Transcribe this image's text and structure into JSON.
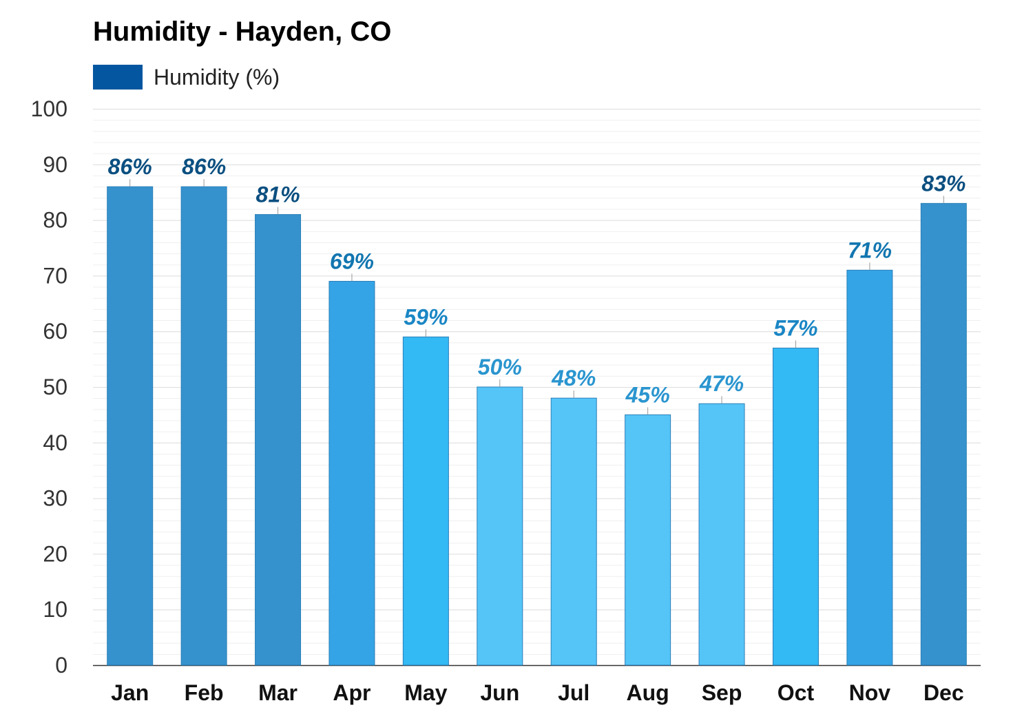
{
  "chart_data": {
    "type": "bar",
    "title": "Humidity - Hayden, CO",
    "legend": {
      "label": "Humidity (%)",
      "color": "#0456a0",
      "placement": "top-left"
    },
    "xlabel": "",
    "ylabel": "",
    "ylim": [
      0,
      100
    ],
    "yticks": [
      "0",
      "10",
      "20",
      "30",
      "40",
      "50",
      "60",
      "70",
      "80",
      "90",
      "100"
    ],
    "grid": true,
    "categories": [
      "Jan",
      "Feb",
      "Mar",
      "Apr",
      "May",
      "Jun",
      "Jul",
      "Aug",
      "Sep",
      "Oct",
      "Nov",
      "Dec"
    ],
    "series": [
      {
        "name": "Humidity (%)",
        "values": [
          86,
          86,
          81,
          69,
          59,
          50,
          48,
          45,
          47,
          57,
          71,
          83
        ],
        "labels": [
          "86%",
          "86%",
          "81%",
          "69%",
          "59%",
          "50%",
          "48%",
          "45%",
          "47%",
          "57%",
          "71%",
          "83%"
        ],
        "bar_colors": [
          "#3692cd",
          "#3692cd",
          "#3692cd",
          "#35a4e6",
          "#33b9f4",
          "#55c5f8",
          "#55c5f8",
          "#55c5f8",
          "#55c5f8",
          "#33b9f4",
          "#35a4e6",
          "#3692cd"
        ],
        "label_colors": [
          "#0b4f80",
          "#0b4f80",
          "#0b4f80",
          "#1276b0",
          "#1a86c4",
          "#2a95cf",
          "#2a95cf",
          "#2a95cf",
          "#2a95cf",
          "#1a86c4",
          "#1276b0",
          "#0b4f80"
        ]
      }
    ]
  }
}
